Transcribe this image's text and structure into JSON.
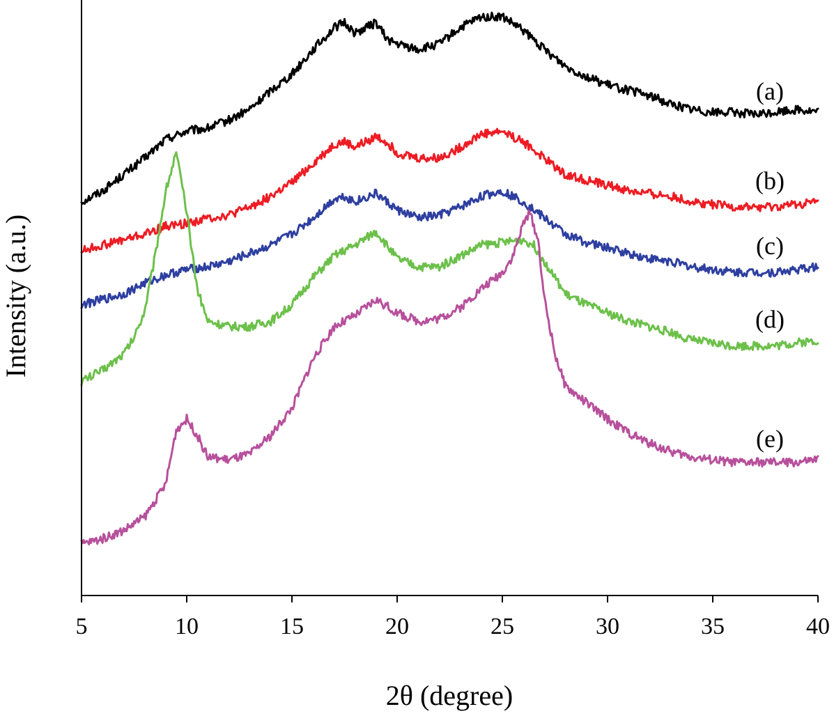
{
  "chart_data": {
    "type": "line",
    "xlabel": "2θ (degree)",
    "ylabel": "Intensity (a.u.)",
    "xlim": [
      5,
      40
    ],
    "xticks": [
      5,
      10,
      15,
      20,
      25,
      30,
      35,
      40
    ],
    "ylim": [
      0,
      100
    ],
    "yticks_shown": false,
    "grid": false,
    "legend": "none",
    "series": [
      {
        "label": "(a)",
        "color": "#000000",
        "points": [
          [
            5,
            68
          ],
          [
            6,
            70
          ],
          [
            7,
            73
          ],
          [
            8,
            76
          ],
          [
            9,
            79.5
          ],
          [
            10,
            81
          ],
          [
            11,
            81.5
          ],
          [
            12,
            83
          ],
          [
            13,
            85
          ],
          [
            14,
            88.5
          ],
          [
            15,
            91.5
          ],
          [
            16,
            96
          ],
          [
            17,
            100
          ],
          [
            17.5,
            101
          ],
          [
            18,
            99
          ],
          [
            19,
            101
          ],
          [
            19.5,
            98
          ],
          [
            20,
            97
          ],
          [
            21,
            96
          ],
          [
            22,
            97
          ],
          [
            23,
            100
          ],
          [
            24,
            102
          ],
          [
            25,
            102
          ],
          [
            26,
            99.5
          ],
          [
            27,
            96
          ],
          [
            28,
            93
          ],
          [
            29,
            91
          ],
          [
            30,
            89.5
          ],
          [
            31,
            88.5
          ],
          [
            32,
            87.5
          ],
          [
            33,
            86
          ],
          [
            34,
            85
          ],
          [
            35,
            84.5
          ],
          [
            36,
            84.5
          ],
          [
            37,
            84
          ],
          [
            38,
            84.5
          ],
          [
            39,
            85
          ],
          [
            40,
            84.5
          ]
        ]
      },
      {
        "label": "(b)",
        "color": "#ed1c24",
        "points": [
          [
            5,
            59
          ],
          [
            6,
            60
          ],
          [
            7,
            61
          ],
          [
            8,
            62
          ],
          [
            9,
            63.5
          ],
          [
            10,
            64
          ],
          [
            11,
            65
          ],
          [
            12,
            65.5
          ],
          [
            13,
            67
          ],
          [
            14,
            69
          ],
          [
            15,
            71.5
          ],
          [
            16,
            75
          ],
          [
            17,
            78.5
          ],
          [
            17.5,
            79
          ],
          [
            18,
            78
          ],
          [
            19,
            80
          ],
          [
            19.5,
            79
          ],
          [
            20,
            77
          ],
          [
            21,
            76
          ],
          [
            22,
            76
          ],
          [
            23,
            78
          ],
          [
            24,
            80.5
          ],
          [
            25,
            81
          ],
          [
            26,
            79
          ],
          [
            27,
            76
          ],
          [
            28,
            73
          ],
          [
            29,
            72
          ],
          [
            30,
            71
          ],
          [
            31,
            70
          ],
          [
            32,
            69.5
          ],
          [
            33,
            69
          ],
          [
            34,
            68
          ],
          [
            35,
            67.5
          ],
          [
            36,
            67
          ],
          [
            37,
            67
          ],
          [
            38,
            67
          ],
          [
            39,
            67.5
          ],
          [
            40,
            68
          ]
        ]
      },
      {
        "label": "(c)",
        "color": "#2e3fa0",
        "points": [
          [
            5,
            49
          ],
          [
            6,
            50
          ],
          [
            7,
            51
          ],
          [
            8,
            53
          ],
          [
            9,
            54.5
          ],
          [
            10,
            55.5
          ],
          [
            11,
            56
          ],
          [
            12,
            57
          ],
          [
            13,
            58.5
          ],
          [
            14,
            60
          ],
          [
            15,
            62
          ],
          [
            16,
            65
          ],
          [
            17,
            68.5
          ],
          [
            17.5,
            69
          ],
          [
            18,
            68
          ],
          [
            19,
            69.5
          ],
          [
            19.5,
            68
          ],
          [
            20,
            66.5
          ],
          [
            21,
            65
          ],
          [
            22,
            65.5
          ],
          [
            23,
            67
          ],
          [
            24,
            69
          ],
          [
            25,
            70
          ],
          [
            26,
            68
          ],
          [
            27,
            65
          ],
          [
            28,
            62
          ],
          [
            29,
            60.5
          ],
          [
            30,
            59.5
          ],
          [
            31,
            58.5
          ],
          [
            32,
            57.5
          ],
          [
            33,
            57
          ],
          [
            34,
            56
          ],
          [
            35,
            55.5
          ],
          [
            36,
            55
          ],
          [
            37,
            55
          ],
          [
            38,
            55
          ],
          [
            39,
            55.5
          ],
          [
            40,
            56
          ]
        ]
      },
      {
        "label": "(d)",
        "color": "#6cc04a",
        "points": [
          [
            5,
            35
          ],
          [
            6,
            37
          ],
          [
            7,
            40
          ],
          [
            7.5,
            43
          ],
          [
            8,
            48
          ],
          [
            8.5,
            58
          ],
          [
            9,
            70
          ],
          [
            9.5,
            77
          ],
          [
            10,
            66
          ],
          [
            10.5,
            52
          ],
          [
            11,
            46
          ],
          [
            12,
            45
          ],
          [
            13,
            45
          ],
          [
            14,
            46
          ],
          [
            15,
            49
          ],
          [
            16,
            54
          ],
          [
            17,
            58
          ],
          [
            18,
            60
          ],
          [
            19,
            62.5
          ],
          [
            19.5,
            60
          ],
          [
            20,
            57.5
          ],
          [
            21,
            56
          ],
          [
            22,
            56
          ],
          [
            23,
            58
          ],
          [
            24,
            60
          ],
          [
            25,
            60.5
          ],
          [
            26,
            61
          ],
          [
            26.5,
            60
          ],
          [
            27,
            57
          ],
          [
            28,
            51
          ],
          [
            29,
            49
          ],
          [
            30,
            47.5
          ],
          [
            31,
            46
          ],
          [
            32,
            45
          ],
          [
            33,
            44
          ],
          [
            34,
            42.5
          ],
          [
            35,
            42
          ],
          [
            36,
            41.5
          ],
          [
            37,
            41.5
          ],
          [
            38,
            41.5
          ],
          [
            39,
            42
          ],
          [
            40,
            42.5
          ]
        ]
      },
      {
        "label": "(e)",
        "color": "#b7509c",
        "points": [
          [
            5,
            5
          ],
          [
            6,
            6
          ],
          [
            7,
            7.5
          ],
          [
            8,
            10
          ],
          [
            9,
            16
          ],
          [
            9.5,
            26
          ],
          [
            10,
            28
          ],
          [
            10.5,
            25
          ],
          [
            11,
            21
          ],
          [
            12,
            20.5
          ],
          [
            13,
            21.5
          ],
          [
            14,
            25
          ],
          [
            15,
            30
          ],
          [
            16,
            39
          ],
          [
            17,
            45
          ],
          [
            18,
            47
          ],
          [
            19,
            50
          ],
          [
            20,
            47.5
          ],
          [
            21,
            46
          ],
          [
            22,
            46.5
          ],
          [
            23,
            48.5
          ],
          [
            24,
            52
          ],
          [
            25,
            55
          ],
          [
            25.5,
            58
          ],
          [
            26,
            64
          ],
          [
            26.3,
            66
          ],
          [
            26.7,
            61
          ],
          [
            27,
            50
          ],
          [
            27.5,
            40
          ],
          [
            28,
            34
          ],
          [
            29,
            31
          ],
          [
            30,
            28
          ],
          [
            31,
            25.5
          ],
          [
            32,
            23.5
          ],
          [
            33,
            22
          ],
          [
            34,
            21
          ],
          [
            35,
            20.5
          ],
          [
            36,
            20
          ],
          [
            37,
            20
          ],
          [
            38,
            20
          ],
          [
            39,
            20
          ],
          [
            40,
            20.5
          ]
        ]
      }
    ]
  }
}
